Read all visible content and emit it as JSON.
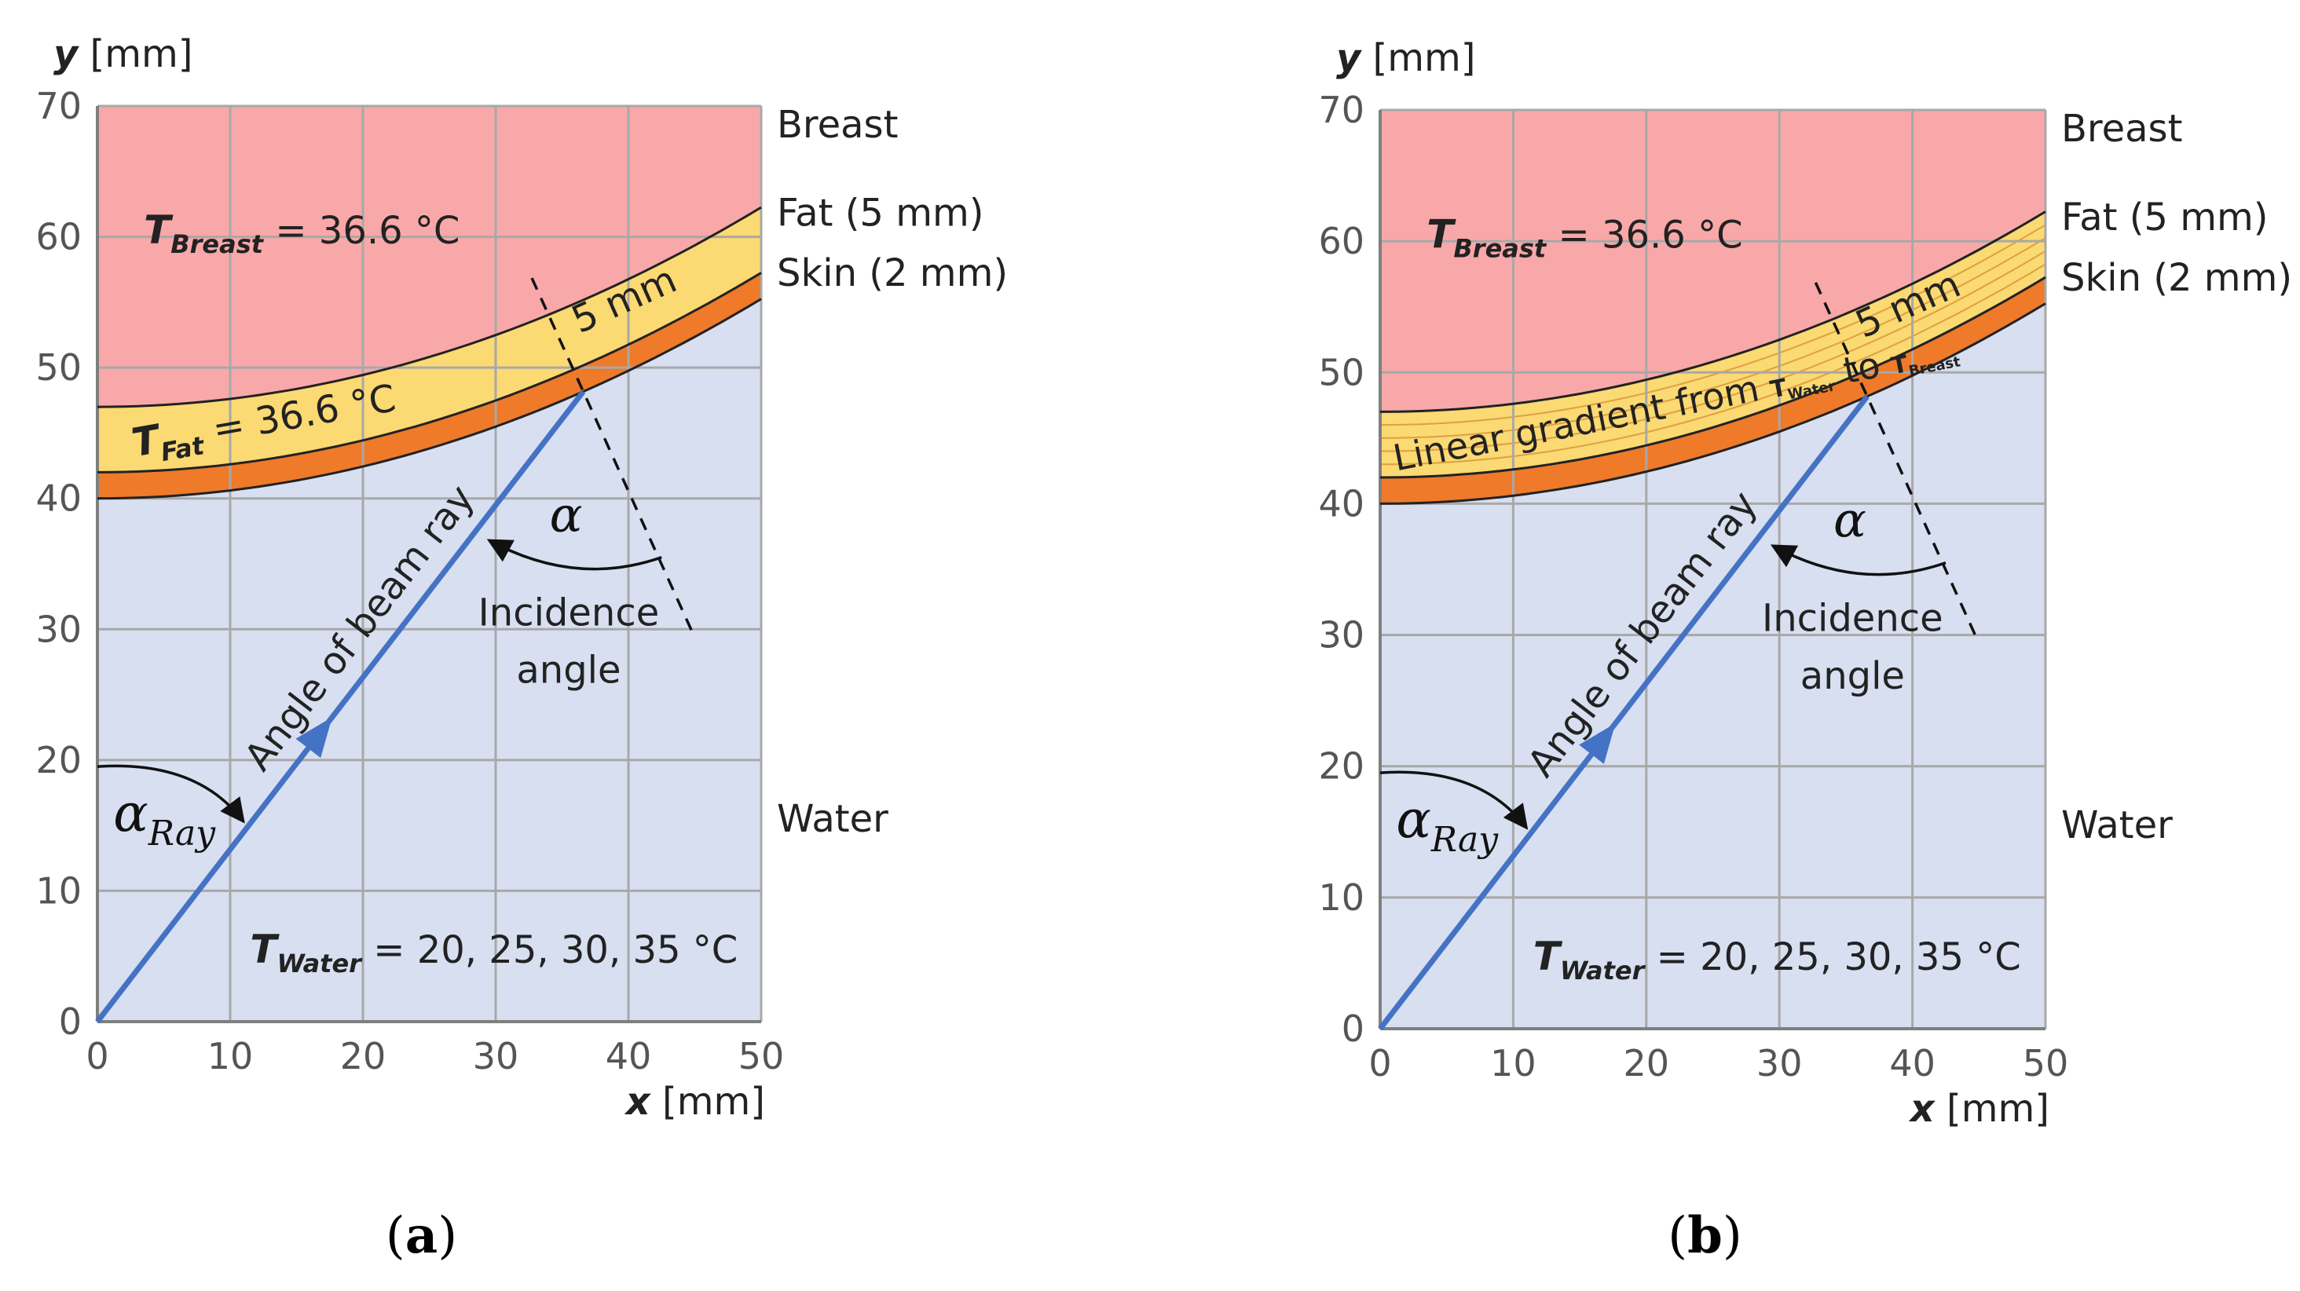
{
  "figure": {
    "colors": {
      "breast": "#f8a8a8",
      "fat": "#fbd973",
      "skin": "#ee7a2a",
      "water": "#d7dff0",
      "grid": "#a8a8a8",
      "ray": "#4472c4"
    },
    "panels": [
      {
        "caption": {
          "open": "(",
          "letter": "a",
          "close": ")"
        },
        "axis": {
          "x_ticks": [
            "0",
            "10",
            "20",
            "30",
            "40",
            "50"
          ],
          "y_ticks": [
            "0",
            "10",
            "20",
            "30",
            "40",
            "50",
            "60",
            "70"
          ],
          "x_unit_var": "x",
          "x_unit": "[mm]",
          "y_unit_var": "y",
          "y_unit": "[mm]"
        },
        "regions": {
          "breast": "Breast",
          "fat": "Fat (5 mm)",
          "skin": "Skin (2 mm)",
          "water": "Water"
        },
        "temps": {
          "breast_var": "T",
          "breast_sub": "Breast",
          "breast_val": "= 36.6 °C",
          "fat_var": "T",
          "fat_sub": "Fat",
          "fat_val": "= 36.6 °C",
          "water_var": "T",
          "water_sub": "Water",
          "water_val": "= 20, 25, 30, 35 °C"
        },
        "ray_label": "Angle of beam ray",
        "alpha_ray": {
          "sym": "α",
          "sub": "Ray"
        },
        "alpha": "α",
        "incidence": [
          "Incidence",
          "angle"
        ],
        "dist": "5 mm"
      },
      {
        "caption": {
          "open": "(",
          "letter": "b",
          "close": ")"
        },
        "axis": {
          "x_ticks": [
            "0",
            "10",
            "20",
            "30",
            "40",
            "50"
          ],
          "y_ticks": [
            "0",
            "10",
            "20",
            "30",
            "40",
            "50",
            "60",
            "70"
          ],
          "x_unit_var": "x",
          "x_unit": "[mm]",
          "y_unit_var": "y",
          "y_unit": "[mm]"
        },
        "regions": {
          "breast": "Breast",
          "fat": "Fat (5 mm)",
          "skin": "Skin (2 mm)",
          "water": "Water"
        },
        "temps": {
          "breast_var": "T",
          "breast_sub": "Breast",
          "breast_val": "= 36.6 °C",
          "water_var": "T",
          "water_sub": "Water",
          "water_val": "= 20, 25, 30, 35 °C"
        },
        "gradient": {
          "prefix": "Linear gradient  from ",
          "t1": "T",
          "t1_sub": "Water",
          "mid": " to ",
          "t2": "T",
          "t2_sub": "Breast"
        },
        "ray_label": "Angle of beam ray",
        "alpha_ray": {
          "sym": "α",
          "sub": "Ray"
        },
        "alpha": "α",
        "incidence": [
          "Incidence",
          "angle"
        ],
        "dist": "5 mm"
      }
    ]
  }
}
